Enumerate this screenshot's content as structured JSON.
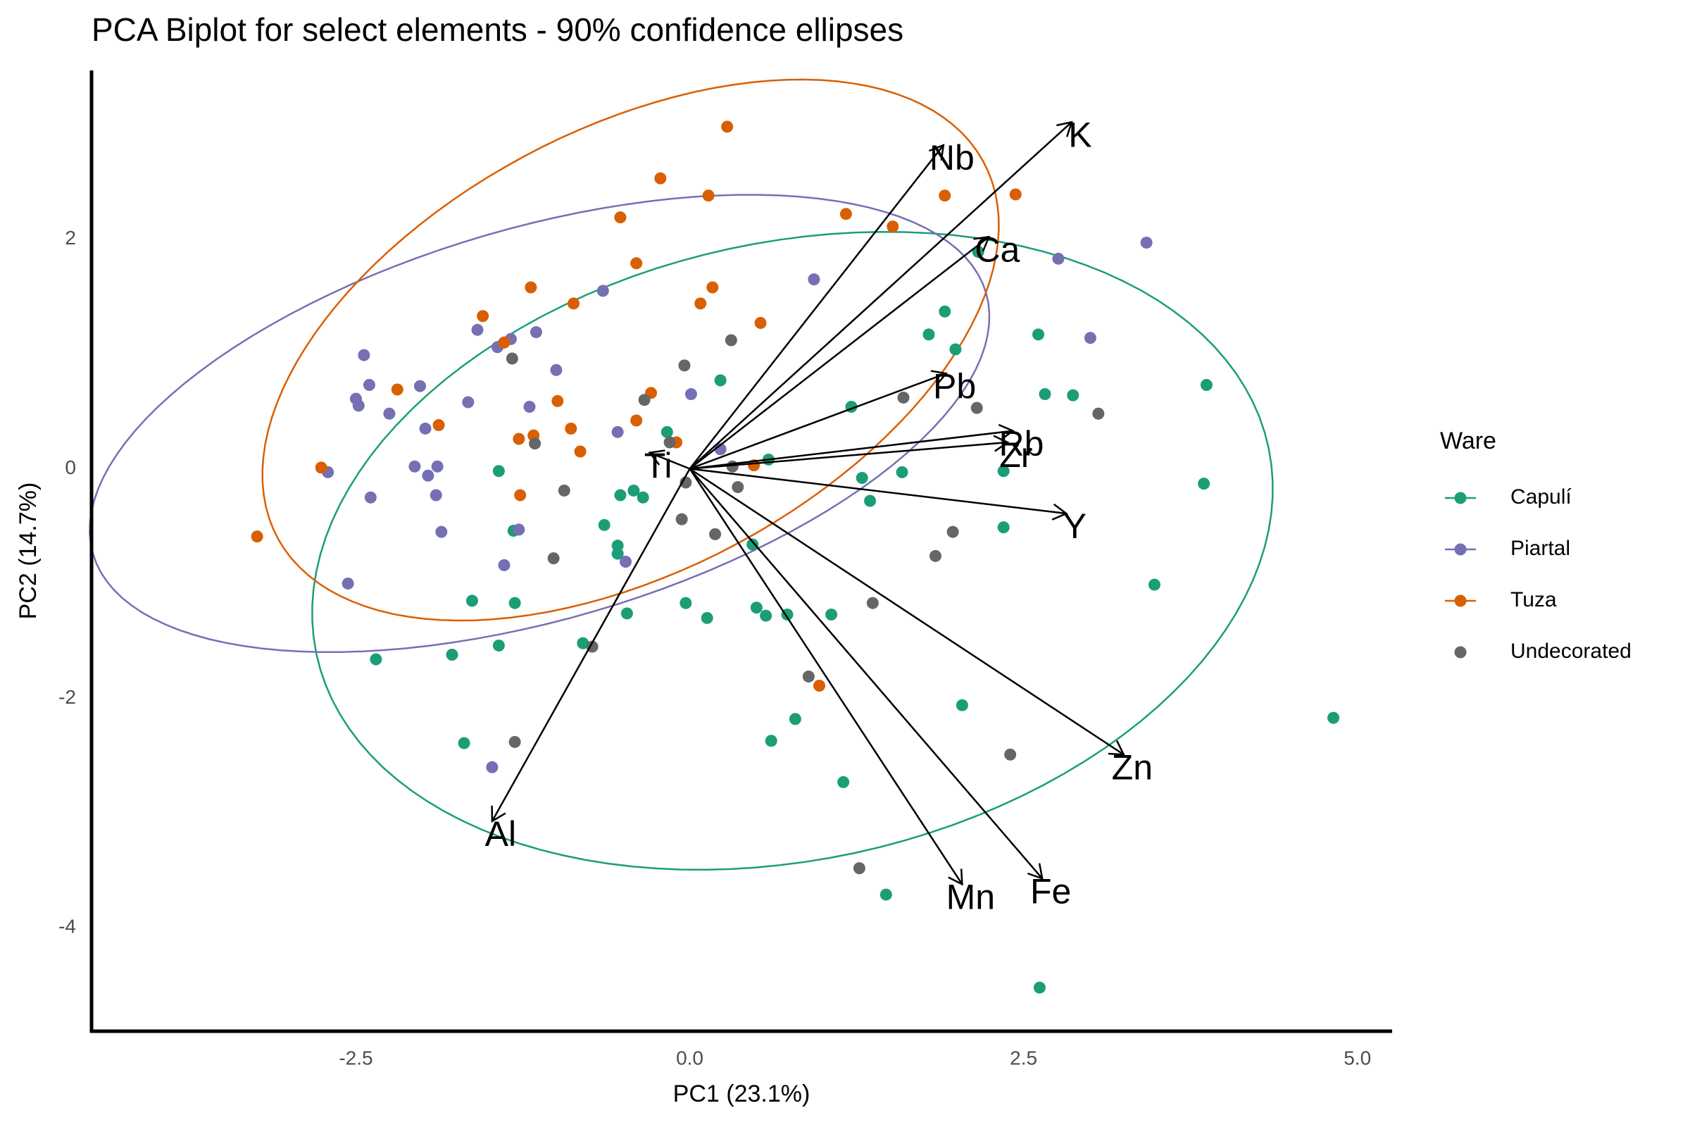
{
  "chart_data": {
    "type": "scatter",
    "title": "PCA Biplot for select elements - 90% confidence ellipses",
    "x_label": "PC1 (23.1%)",
    "y_label": "PC2 (14.7%)",
    "legend_title": "Ware",
    "legend_position": "right",
    "ellipse_level": 0.9,
    "xlim": [
      -4.48,
      5.26
    ],
    "ylim": [
      -4.9,
      3.47
    ],
    "xticks": [
      -2.5,
      {
        "value": 0,
        "label": "0.0"
      },
      2.5,
      {
        "value": 5,
        "label": "5.0"
      }
    ],
    "yticks": [
      -4,
      -2,
      0,
      2
    ],
    "grid": false,
    "series": [
      {
        "name": "Capulí",
        "color": "#1b9e77",
        "ellipse": true,
        "x": [
          2.16,
          1.91,
          1.79,
          1.99,
          2.61,
          2.66,
          2.87,
          3.87,
          3.85,
          3.48,
          4.82,
          2.35,
          2.35,
          1.21,
          1.29,
          1.59,
          1.35,
          0.23,
          -0.17,
          0.59,
          0.47,
          -0.03,
          0.13,
          0.5,
          0.57,
          0.73,
          1.06,
          -0.47,
          -0.8,
          -0.64,
          -0.54,
          -0.52,
          -0.42,
          -0.35,
          -1.43,
          -1.32,
          -1.31,
          -1.63,
          -1.43,
          -1.78,
          -2.35,
          -1.69,
          2.04,
          0.79,
          0.61,
          1.15,
          1.47,
          2.62,
          -0.54
        ],
        "y": [
          1.89,
          1.37,
          1.17,
          1.04,
          1.17,
          0.65,
          0.64,
          0.73,
          -0.13,
          -1.01,
          -2.17,
          -0.02,
          -0.51,
          0.54,
          -0.08,
          -0.03,
          -0.28,
          0.77,
          0.32,
          0.08,
          -0.66,
          -1.17,
          -1.3,
          -1.21,
          -1.28,
          -1.27,
          -1.27,
          -1.26,
          -1.52,
          -0.49,
          -0.67,
          -0.23,
          -0.19,
          -0.25,
          -0.02,
          -0.54,
          -1.17,
          -1.15,
          -1.54,
          -1.62,
          -1.66,
          -2.39,
          -2.06,
          -2.18,
          -2.37,
          -2.73,
          -3.71,
          -4.52,
          -0.74
        ]
      },
      {
        "name": "Piartal",
        "color": "#7570b3",
        "ellipse": true,
        "x": [
          3.42,
          2.76,
          3.0,
          0.93,
          -0.65,
          -1.15,
          -1.34,
          -1.44,
          -1.59,
          -1.0,
          -1.2,
          -1.66,
          -2.02,
          -2.44,
          -2.4,
          -2.5,
          -2.48,
          -2.25,
          -1.98,
          -1.89,
          -1.96,
          -2.06,
          -1.9,
          -1.86,
          -2.39,
          -2.71,
          -2.56,
          -0.54,
          0.01,
          0.23,
          -1.39,
          -0.48,
          -1.48,
          -1.28
        ],
        "y": [
          1.97,
          1.83,
          1.14,
          1.65,
          1.55,
          1.19,
          1.13,
          1.06,
          1.21,
          0.86,
          0.54,
          0.58,
          0.72,
          0.99,
          0.73,
          0.61,
          0.55,
          0.48,
          0.35,
          0.02,
          -0.06,
          0.02,
          -0.23,
          -0.55,
          -0.25,
          -0.03,
          -1.0,
          0.32,
          0.65,
          0.17,
          -0.84,
          -0.81,
          -2.6,
          -0.53
        ]
      },
      {
        "name": "Tuza",
        "color": "#d95f02",
        "ellipse": true,
        "x": [
          0.28,
          -0.22,
          0.14,
          -0.52,
          -0.4,
          -1.19,
          -0.87,
          0.17,
          0.08,
          0.53,
          1.17,
          1.52,
          1.91,
          2.44,
          -1.55,
          -1.39,
          -2.19,
          -1.88,
          -0.99,
          -0.29,
          -0.4,
          -0.89,
          -0.82,
          -1.28,
          -1.17,
          -1.27,
          -2.76,
          -3.24,
          -0.1,
          0.48,
          0.97
        ],
        "y": [
          2.98,
          2.53,
          2.38,
          2.19,
          1.79,
          1.58,
          1.44,
          1.58,
          1.44,
          1.27,
          2.22,
          2.11,
          2.38,
          2.39,
          1.33,
          1.1,
          0.69,
          0.38,
          0.59,
          0.66,
          0.42,
          0.35,
          0.15,
          0.26,
          0.29,
          -0.23,
          0.01,
          -0.59,
          0.23,
          0.03,
          -1.89
        ]
      },
      {
        "name": "Undecorated",
        "color": "#666666",
        "ellipse": false,
        "x": [
          -1.33,
          -0.04,
          0.31,
          -0.34,
          -1.16,
          1.6,
          2.15,
          3.06,
          -0.15,
          -0.03,
          0.36,
          0.32,
          -0.94,
          -0.06,
          0.19,
          -1.02,
          1.97,
          1.84,
          1.37,
          -0.73,
          0.89,
          -1.31,
          2.4,
          1.27
        ],
        "y": [
          0.96,
          0.9,
          1.12,
          0.6,
          0.22,
          0.62,
          0.53,
          0.48,
          0.23,
          -0.12,
          -0.16,
          0.02,
          -0.19,
          -0.44,
          -0.57,
          -0.78,
          -0.55,
          -0.76,
          -1.17,
          -1.55,
          -1.81,
          -2.38,
          -2.49,
          -3.48
        ]
      }
    ],
    "arrows": [
      {
        "label": "K",
        "x": 2.86,
        "y": 3.02
      },
      {
        "label": "Nb",
        "x": 1.9,
        "y": 2.82
      },
      {
        "label": "Ca",
        "x": 2.24,
        "y": 2.02
      },
      {
        "label": "Pb",
        "x": 1.92,
        "y": 0.83
      },
      {
        "label": "Rb",
        "x": 2.42,
        "y": 0.33
      },
      {
        "label": "Zr",
        "x": 2.38,
        "y": 0.23
      },
      {
        "label": "Y",
        "x": 2.82,
        "y": -0.39
      },
      {
        "label": "Zn",
        "x": 3.25,
        "y": -2.49
      },
      {
        "label": "Fe",
        "x": 2.64,
        "y": -3.57
      },
      {
        "label": "Mn",
        "x": 2.04,
        "y": -3.62
      },
      {
        "label": "Al",
        "x": -1.48,
        "y": -3.07
      },
      {
        "label": "Ti",
        "x": -0.3,
        "y": 0.14
      }
    ]
  }
}
